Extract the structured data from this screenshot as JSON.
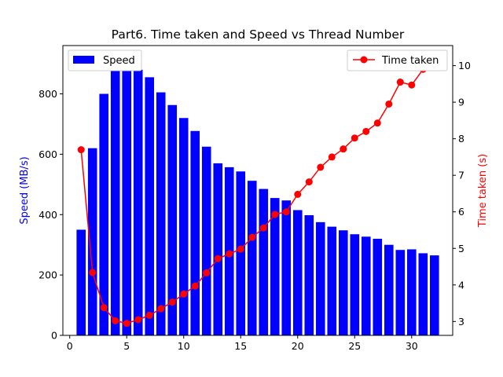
{
  "chart_data": {
    "type": "bar+line",
    "title": "Part6. Time taken and Speed vs Thread Number",
    "xlabel": "",
    "ylabel_left": "Speed (MB/s)",
    "ylabel_right": "Time taken (s)",
    "xlim": [
      -0.6,
      33.6
    ],
    "ylim_left": [
      0,
      960
    ],
    "ylim_right": [
      2.62,
      10.55
    ],
    "x_ticks": [
      0,
      5,
      10,
      15,
      20,
      25,
      30
    ],
    "y_left_ticks": [
      0,
      200,
      400,
      600,
      800
    ],
    "y_right_ticks": [
      3,
      4,
      5,
      6,
      7,
      8,
      9,
      10
    ],
    "x": [
      1,
      2,
      3,
      4,
      5,
      6,
      7,
      8,
      9,
      10,
      11,
      12,
      13,
      14,
      15,
      16,
      17,
      18,
      19,
      20,
      21,
      22,
      23,
      24,
      25,
      26,
      27,
      28,
      29,
      30,
      31,
      32
    ],
    "series": [
      {
        "name": "Speed",
        "kind": "bar",
        "axis": "left",
        "color": "#0000ff",
        "values": [
          350,
          620,
          800,
          895,
          910,
          880,
          855,
          805,
          763,
          720,
          677,
          625,
          570,
          557,
          543,
          512,
          485,
          455,
          447,
          415,
          398,
          375,
          360,
          348,
          335,
          327,
          320,
          300,
          283,
          285,
          272,
          265
        ]
      },
      {
        "name": "Time taken",
        "kind": "line",
        "axis": "right",
        "color": "#ff0000",
        "values": [
          7.7,
          4.34,
          3.38,
          3.02,
          2.95,
          3.05,
          3.17,
          3.35,
          3.53,
          3.75,
          3.97,
          4.33,
          4.72,
          4.85,
          4.98,
          5.3,
          5.56,
          5.93,
          6.0,
          6.48,
          6.82,
          7.22,
          7.5,
          7.72,
          8.02,
          8.2,
          8.43,
          8.95,
          9.55,
          9.47,
          9.9,
          10.15
        ]
      }
    ],
    "legend_left_position": "top-left",
    "legend_right_position": "top-right",
    "grid": false
  }
}
